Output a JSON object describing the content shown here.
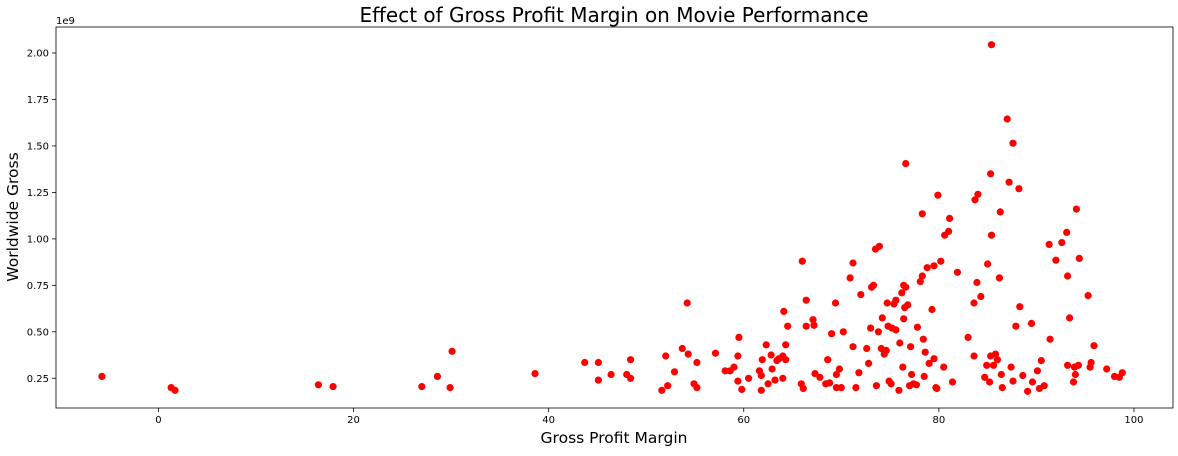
{
  "chart_data": {
    "type": "scatter",
    "title": "Effect of Gross Profit Margin on Movie Performance",
    "xlabel": "Gross Profit Margin",
    "ylabel": "Worldwide Gross",
    "y_offset_label": "1e9",
    "xlim": [
      -10.5,
      104
    ],
    "ylim": [
      0.09,
      2.14
    ],
    "x_ticks": [
      0,
      20,
      40,
      60,
      80,
      100
    ],
    "x_tick_labels": [
      "0",
      "20",
      "40",
      "60",
      "80",
      "100"
    ],
    "y_ticks": [
      0.25,
      0.5,
      0.75,
      1.0,
      1.25,
      1.5,
      1.75,
      2.0
    ],
    "y_tick_labels": [
      "0.25",
      "0.50",
      "0.75",
      "1.00",
      "1.25",
      "1.50",
      "1.75",
      "2.00"
    ],
    "grid": false,
    "marker_color": "#ff0000",
    "series": [
      {
        "values_unit": "x1e9",
        "points": [
          [
            -5.8,
            0.26
          ],
          [
            1.3,
            0.2
          ],
          [
            1.7,
            0.185
          ],
          [
            16.4,
            0.215
          ],
          [
            17.9,
            0.205
          ],
          [
            27.0,
            0.205
          ],
          [
            28.6,
            0.26
          ],
          [
            29.9,
            0.2
          ],
          [
            30.1,
            0.395
          ],
          [
            38.6,
            0.275
          ],
          [
            43.7,
            0.335
          ],
          [
            45.1,
            0.335
          ],
          [
            45.1,
            0.24
          ],
          [
            46.4,
            0.27
          ],
          [
            48.0,
            0.27
          ],
          [
            48.4,
            0.25
          ],
          [
            48.4,
            0.35
          ],
          [
            51.6,
            0.185
          ],
          [
            52.0,
            0.37
          ],
          [
            52.2,
            0.21
          ],
          [
            52.9,
            0.285
          ],
          [
            53.7,
            0.41
          ],
          [
            54.2,
            0.655
          ],
          [
            54.3,
            0.38
          ],
          [
            54.9,
            0.22
          ],
          [
            55.2,
            0.335
          ],
          [
            55.2,
            0.2
          ],
          [
            57.1,
            0.385
          ],
          [
            58.1,
            0.29
          ],
          [
            58.6,
            0.29
          ],
          [
            59.0,
            0.31
          ],
          [
            59.4,
            0.235
          ],
          [
            59.4,
            0.37
          ],
          [
            59.5,
            0.47
          ],
          [
            59.8,
            0.19
          ],
          [
            60.5,
            0.25
          ],
          [
            61.6,
            0.29
          ],
          [
            61.8,
            0.265
          ],
          [
            61.8,
            0.185
          ],
          [
            61.9,
            0.35
          ],
          [
            62.3,
            0.43
          ],
          [
            62.5,
            0.22
          ],
          [
            62.8,
            0.375
          ],
          [
            62.9,
            0.3
          ],
          [
            63.2,
            0.24
          ],
          [
            63.4,
            0.345
          ],
          [
            63.6,
            0.355
          ],
          [
            64.0,
            0.25
          ],
          [
            64.0,
            0.37
          ],
          [
            64.1,
            0.61
          ],
          [
            64.3,
            0.35
          ],
          [
            64.3,
            0.43
          ],
          [
            64.5,
            0.53
          ],
          [
            65.9,
            0.22
          ],
          [
            66.0,
            0.88
          ],
          [
            66.1,
            0.195
          ],
          [
            66.4,
            0.67
          ],
          [
            66.4,
            0.53
          ],
          [
            67.1,
            0.565
          ],
          [
            67.2,
            0.535
          ],
          [
            67.3,
            0.275
          ],
          [
            67.8,
            0.255
          ],
          [
            68.4,
            0.22
          ],
          [
            68.6,
            0.35
          ],
          [
            68.8,
            0.225
          ],
          [
            69.0,
            0.49
          ],
          [
            69.4,
            0.655
          ],
          [
            69.5,
            0.27
          ],
          [
            69.5,
            0.2
          ],
          [
            69.8,
            0.3
          ],
          [
            70.0,
            0.2
          ],
          [
            70.2,
            0.5
          ],
          [
            70.9,
            0.79
          ],
          [
            71.2,
            0.87
          ],
          [
            71.2,
            0.42
          ],
          [
            71.5,
            0.2
          ],
          [
            71.8,
            0.28
          ],
          [
            72.0,
            0.7
          ],
          [
            72.6,
            0.41
          ],
          [
            72.8,
            0.33
          ],
          [
            73.0,
            0.52
          ],
          [
            73.1,
            0.74
          ],
          [
            73.3,
            0.75
          ],
          [
            73.5,
            0.945
          ],
          [
            73.6,
            0.21
          ],
          [
            73.8,
            0.5
          ],
          [
            73.9,
            0.96
          ],
          [
            74.1,
            0.41
          ],
          [
            74.2,
            0.575
          ],
          [
            74.4,
            0.38
          ],
          [
            74.6,
            0.4
          ],
          [
            74.7,
            0.655
          ],
          [
            74.8,
            0.53
          ],
          [
            74.9,
            0.235
          ],
          [
            75.1,
            0.22
          ],
          [
            75.2,
            0.52
          ],
          [
            75.4,
            0.65
          ],
          [
            75.6,
            0.67
          ],
          [
            75.6,
            0.51
          ],
          [
            75.9,
            0.185
          ],
          [
            76.0,
            0.44
          ],
          [
            76.2,
            0.71
          ],
          [
            76.3,
            0.31
          ],
          [
            76.4,
            0.57
          ],
          [
            76.5,
            0.63
          ],
          [
            76.4,
            0.75
          ],
          [
            76.6,
            1.405
          ],
          [
            76.6,
            0.74
          ],
          [
            76.8,
            0.645
          ],
          [
            77.0,
            0.21
          ],
          [
            77.1,
            0.42
          ],
          [
            77.2,
            0.27
          ],
          [
            77.4,
            0.22
          ],
          [
            77.7,
            0.215
          ],
          [
            77.8,
            0.525
          ],
          [
            78.1,
            0.77
          ],
          [
            78.3,
            1.135
          ],
          [
            78.3,
            0.8
          ],
          [
            78.4,
            0.46
          ],
          [
            78.5,
            0.26
          ],
          [
            78.6,
            0.39
          ],
          [
            78.8,
            0.845
          ],
          [
            79.0,
            0.33
          ],
          [
            79.3,
            0.62
          ],
          [
            79.5,
            0.355
          ],
          [
            79.5,
            0.855
          ],
          [
            79.7,
            0.2
          ],
          [
            79.8,
            0.195
          ],
          [
            79.9,
            1.235
          ],
          [
            80.2,
            0.88
          ],
          [
            80.5,
            0.31
          ],
          [
            80.6,
            1.02
          ],
          [
            81.0,
            1.04
          ],
          [
            81.1,
            1.11
          ],
          [
            81.4,
            0.23
          ],
          [
            81.9,
            0.82
          ],
          [
            83.0,
            0.47
          ],
          [
            83.6,
            0.655
          ],
          [
            83.6,
            0.37
          ],
          [
            83.7,
            1.21
          ],
          [
            83.9,
            0.765
          ],
          [
            84.0,
            1.24
          ],
          [
            84.3,
            0.69
          ],
          [
            84.7,
            0.255
          ],
          [
            84.9,
            0.32
          ],
          [
            85.0,
            0.865
          ],
          [
            85.2,
            0.23
          ],
          [
            85.3,
            1.35
          ],
          [
            85.3,
            0.37
          ],
          [
            85.4,
            1.02
          ],
          [
            85.4,
            2.045
          ],
          [
            85.6,
            0.32
          ],
          [
            85.8,
            0.38
          ],
          [
            86.0,
            0.35
          ],
          [
            86.2,
            0.79
          ],
          [
            86.3,
            1.145
          ],
          [
            86.4,
            0.27
          ],
          [
            86.5,
            0.2
          ],
          [
            87.0,
            1.645
          ],
          [
            87.2,
            1.305
          ],
          [
            87.4,
            0.31
          ],
          [
            87.6,
            0.235
          ],
          [
            87.6,
            1.515
          ],
          [
            87.9,
            0.53
          ],
          [
            88.2,
            1.27
          ],
          [
            88.3,
            0.635
          ],
          [
            88.6,
            0.265
          ],
          [
            89.1,
            0.18
          ],
          [
            89.5,
            0.545
          ],
          [
            89.6,
            0.23
          ],
          [
            90.1,
            0.29
          ],
          [
            90.3,
            0.195
          ],
          [
            90.5,
            0.345
          ],
          [
            90.8,
            0.21
          ],
          [
            91.3,
            0.97
          ],
          [
            91.4,
            0.46
          ],
          [
            92.0,
            0.885
          ],
          [
            92.6,
            0.98
          ],
          [
            93.1,
            1.035
          ],
          [
            93.2,
            0.8
          ],
          [
            93.2,
            0.32
          ],
          [
            93.4,
            0.575
          ],
          [
            93.8,
            0.23
          ],
          [
            93.9,
            0.31
          ],
          [
            94.0,
            0.27
          ],
          [
            94.1,
            1.16
          ],
          [
            94.3,
            0.32
          ],
          [
            94.4,
            0.895
          ],
          [
            95.3,
            0.695
          ],
          [
            95.5,
            0.31
          ],
          [
            95.6,
            0.335
          ],
          [
            95.9,
            0.425
          ],
          [
            97.2,
            0.3
          ],
          [
            98.0,
            0.26
          ],
          [
            98.5,
            0.255
          ],
          [
            98.8,
            0.28
          ]
        ]
      }
    ]
  }
}
